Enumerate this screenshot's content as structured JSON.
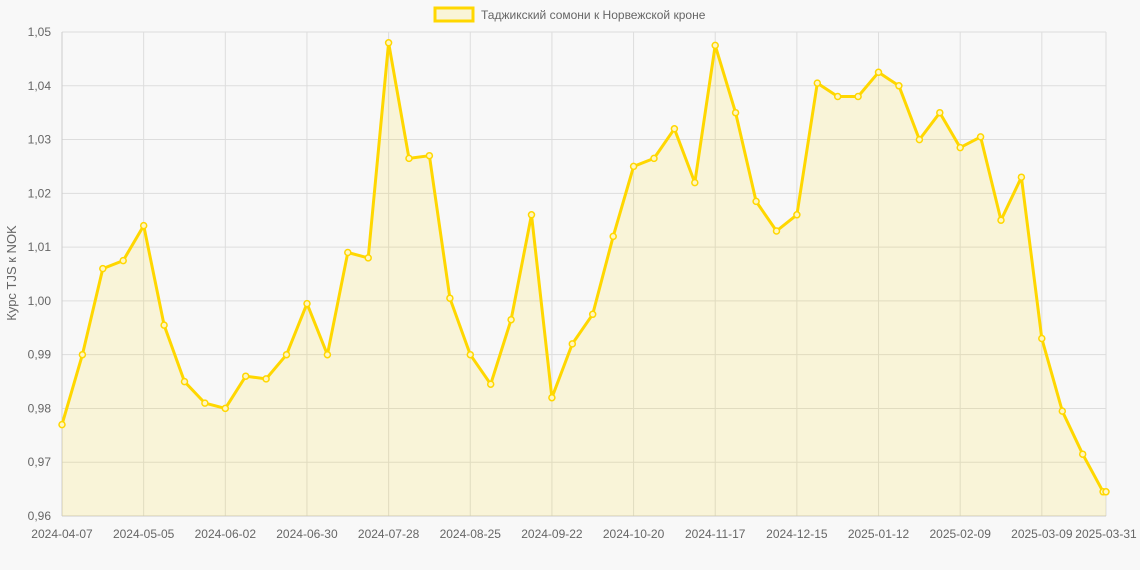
{
  "chart_data": {
    "type": "line",
    "title": "",
    "xlabel": "",
    "ylabel": "Курс TJS к NOK",
    "ylim": [
      0.96,
      1.05
    ],
    "y_ticks": [
      "1,05",
      "1,04",
      "1,03",
      "1,02",
      "1,01",
      "1,00",
      "0,99",
      "0,98",
      "0,97",
      "0,96"
    ],
    "x_ticks": [
      "2024-04-07",
      "2024-05-05",
      "2024-06-02",
      "2024-06-30",
      "2024-07-28",
      "2024-08-25",
      "2024-09-22",
      "2024-10-20",
      "2024-11-17",
      "2024-12-15",
      "2025-01-12",
      "2025-02-09",
      "2025-03-09",
      "2025-03-31"
    ],
    "grid": true,
    "legend_position": "top",
    "series": [
      {
        "name": "Таджикский сомони к Норвежской кроне",
        "color": "#FFD700",
        "fill": "rgba(255,215,0,0.13)",
        "x": [
          "2024-04-07",
          "2024-04-14",
          "2024-04-21",
          "2024-04-28",
          "2024-05-05",
          "2024-05-12",
          "2024-05-19",
          "2024-05-26",
          "2024-06-02",
          "2024-06-09",
          "2024-06-16",
          "2024-06-23",
          "2024-06-30",
          "2024-07-07",
          "2024-07-14",
          "2024-07-21",
          "2024-07-28",
          "2024-08-04",
          "2024-08-11",
          "2024-08-18",
          "2024-08-25",
          "2024-09-01",
          "2024-09-08",
          "2024-09-15",
          "2024-09-22",
          "2024-09-29",
          "2024-10-06",
          "2024-10-13",
          "2024-10-20",
          "2024-10-27",
          "2024-11-03",
          "2024-11-10",
          "2024-11-17",
          "2024-11-24",
          "2024-12-01",
          "2024-12-08",
          "2024-12-15",
          "2024-12-22",
          "2024-12-29",
          "2025-01-05",
          "2025-01-12",
          "2025-01-19",
          "2025-01-26",
          "2025-02-02",
          "2025-02-09",
          "2025-02-16",
          "2025-02-23",
          "2025-03-02",
          "2025-03-09",
          "2025-03-16",
          "2025-03-23",
          "2025-03-30",
          "2025-03-31"
        ],
        "values": [
          0.977,
          0.99,
          1.006,
          1.0075,
          1.014,
          0.9955,
          0.985,
          0.981,
          0.98,
          0.986,
          0.9855,
          0.99,
          0.9995,
          0.99,
          1.009,
          1.008,
          1.048,
          1.0265,
          1.027,
          1.0005,
          0.99,
          0.9845,
          0.9965,
          1.016,
          0.982,
          0.992,
          0.9975,
          1.012,
          1.025,
          1.0265,
          1.032,
          1.022,
          1.0475,
          1.035,
          1.0185,
          1.013,
          1.016,
          1.0405,
          1.038,
          1.038,
          1.0425,
          1.04,
          1.03,
          1.035,
          1.0285,
          1.0305,
          1.015,
          1.023,
          0.993,
          0.9795,
          0.9715,
          0.9645,
          0.9645
        ]
      }
    ]
  }
}
